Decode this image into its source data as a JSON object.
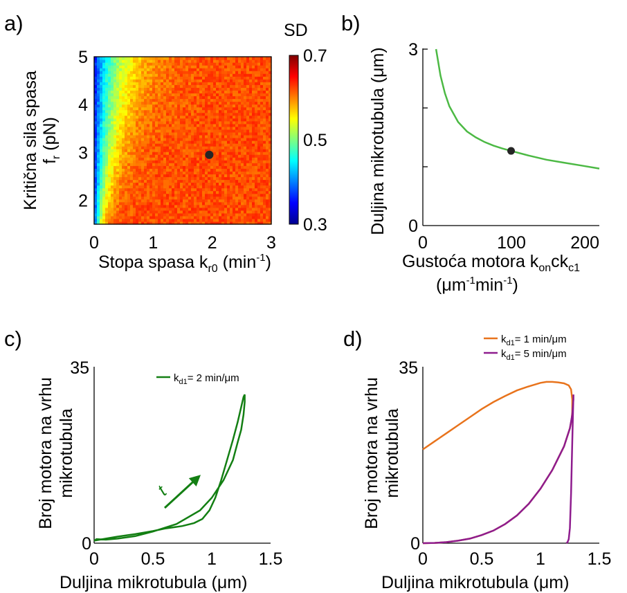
{
  "panels": {
    "a": {
      "label": "a)"
    },
    "b": {
      "label": "b)"
    },
    "c": {
      "label": "c)"
    },
    "d": {
      "label": "d)"
    }
  },
  "colors": {
    "green": "#4cb944",
    "dark_green": "#137f13",
    "orange": "#e8731c",
    "purple": "#8e1c8e",
    "marker": "#262626"
  },
  "chart_data": [
    {
      "id": "a",
      "type": "heatmap",
      "title": "",
      "xlabel": "Stopa spasa k",
      "xlabel_sub": "r0",
      "xlabel_tail": " (min",
      "xlabel_sup": "-1",
      "xlabel_end": ")",
      "ylabel_line1": "Kritična sila spasa",
      "ylabel_line2": "f",
      "ylabel_line2_sub": "r",
      "ylabel_line2_tail": " (pN)",
      "xlim": [
        0,
        3
      ],
      "ylim": [
        1.5,
        5
      ],
      "x_ticks": [
        "0",
        "1",
        "2",
        "3"
      ],
      "y_ticks": [
        "2",
        "3",
        "4",
        "5"
      ],
      "colorbar": {
        "label": "SD",
        "range": [
          0.3,
          0.7
        ],
        "ticks": [
          "0.3",
          "0.5",
          "0.7"
        ],
        "colormap": "jet"
      },
      "description_values": {
        "plateau_sd": 0.62,
        "low_rate_sd": 0.35
      },
      "marker": {
        "x": 1.95,
        "y": 2.95
      }
    },
    {
      "id": "b",
      "type": "line",
      "title": "",
      "xlabel_line1": "Gustoća motora k",
      "xlabel_line1_sub1": "on",
      "xlabel_line1_mid": "ck",
      "xlabel_line1_sub2": "c1",
      "xlabel_line2": "(μm",
      "xlabel_line2_sup1": "-1",
      "xlabel_line2_mid": "min",
      "xlabel_line2_sup2": "-1",
      "xlabel_line2_end": ")",
      "ylabel": "Duljina mikrotubula (μm)",
      "xlim": [
        0,
        200
      ],
      "ylim": [
        0,
        3
      ],
      "x_ticks": [
        "0",
        "100",
        "200"
      ],
      "y_ticks": [
        "0",
        "3"
      ],
      "series": [
        {
          "x": [
            15,
            20,
            25,
            30,
            40,
            50,
            60,
            70,
            80,
            90,
            100,
            120,
            140,
            160,
            180,
            200
          ],
          "y": [
            3.0,
            2.55,
            2.25,
            2.03,
            1.76,
            1.6,
            1.5,
            1.42,
            1.36,
            1.31,
            1.27,
            1.19,
            1.12,
            1.07,
            1.02,
            0.97
          ]
        }
      ],
      "marker": {
        "x": 100,
        "y": 1.27
      }
    },
    {
      "id": "c",
      "type": "line",
      "title": "",
      "xlabel": "Duljina mikrotubula (μm)",
      "ylabel_line1": "Broj motora na vrhu",
      "ylabel_line2": "mikrotubula",
      "xlim": [
        0,
        1.5
      ],
      "ylim": [
        0,
        35
      ],
      "x_ticks": [
        "0",
        "0.5",
        "1",
        "1.5"
      ],
      "y_ticks": [
        "0",
        "35"
      ],
      "legend": {
        "k": "k",
        "sub": "d1",
        "rest": "= 2 min/μm"
      },
      "arrow_label": "t",
      "series": [
        {
          "x": [
            0.0,
            0.1,
            0.2,
            0.35,
            0.5,
            0.6,
            0.75,
            0.85,
            0.92,
            0.98,
            1.03,
            1.08,
            1.13,
            1.18,
            1.22,
            1.25,
            1.27,
            1.28,
            1.28,
            1.27,
            1.25,
            1.22,
            1.18,
            1.1,
            1.0,
            0.9,
            0.7,
            0.5,
            0.35,
            0.2,
            0.1,
            0.02,
            0.0
          ],
          "y": [
            0.5,
            0.9,
            1.3,
            1.8,
            2.4,
            2.9,
            3.4,
            4.0,
            4.8,
            6.5,
            9.0,
            12.5,
            16.5,
            20.5,
            24.0,
            27.0,
            29.0,
            29.5,
            28.0,
            25.5,
            22.5,
            20.0,
            16.5,
            12.5,
            9.0,
            6.5,
            3.8,
            2.3,
            1.4,
            0.9,
            0.7,
            0.8,
            0.5
          ]
        }
      ],
      "arrow": {
        "x0": 0.6,
        "y0": 7.0,
        "x1": 0.88,
        "y1": 13.0
      }
    },
    {
      "id": "d",
      "type": "line",
      "title": "",
      "xlabel": "Duljina mikrotubula (μm)",
      "ylabel_line1": "Broj motora na vrhu",
      "ylabel_line2": "mikrotubula",
      "xlim": [
        0,
        1.5
      ],
      "ylim": [
        0,
        35
      ],
      "x_ticks": [
        "0",
        "0.5",
        "1",
        "1.5"
      ],
      "y_ticks": [
        "0",
        "35"
      ],
      "legend": [
        {
          "k": "k",
          "sub": "d1",
          "rest": "= 1 min/μm"
        },
        {
          "k": "k",
          "sub": "d1",
          "rest": "= 5 min/μm"
        }
      ],
      "series": [
        {
          "name": "k_d1 = 1 min/μm",
          "x": [
            0.0,
            0.1,
            0.2,
            0.3,
            0.4,
            0.5,
            0.6,
            0.7,
            0.8,
            0.9,
            1.0,
            1.05,
            1.1,
            1.15,
            1.2,
            1.24,
            1.26,
            1.27,
            1.27,
            1.265,
            1.25,
            1.2,
            1.1,
            1.0,
            0.9,
            0.8,
            0.7,
            0.6,
            0.5,
            0.4,
            0.3,
            0.2,
            0.1,
            0.02,
            0.0
          ],
          "y": [
            18.6,
            20.2,
            21.8,
            23.4,
            25.0,
            26.6,
            28.0,
            29.2,
            30.3,
            31.1,
            31.8,
            32.0,
            32.0,
            31.9,
            31.7,
            31.3,
            30.5,
            28.5,
            26.0,
            24.5,
            22.8,
            19.2,
            14.5,
            10.8,
            7.8,
            5.5,
            3.8,
            2.5,
            1.6,
            0.9,
            0.5,
            0.2,
            0.05,
            0.0,
            0.0
          ]
        },
        {
          "name": "k_d1 = 5 min/μm",
          "x": [
            0.0,
            0.1,
            0.2,
            0.3,
            0.4,
            0.5,
            0.6,
            0.7,
            0.8,
            0.9,
            1.0,
            1.1,
            1.2,
            1.25,
            1.27,
            1.28,
            1.28,
            1.27,
            1.26,
            1.25,
            1.24,
            1.23,
            1.22
          ],
          "y": [
            0.0,
            0.05,
            0.2,
            0.5,
            0.9,
            1.6,
            2.5,
            3.8,
            5.5,
            7.8,
            10.8,
            14.5,
            19.2,
            22.8,
            25.5,
            28.5,
            29.5,
            20.0,
            10.0,
            3.0,
            0.8,
            0.2,
            0.0
          ]
        }
      ]
    }
  ]
}
